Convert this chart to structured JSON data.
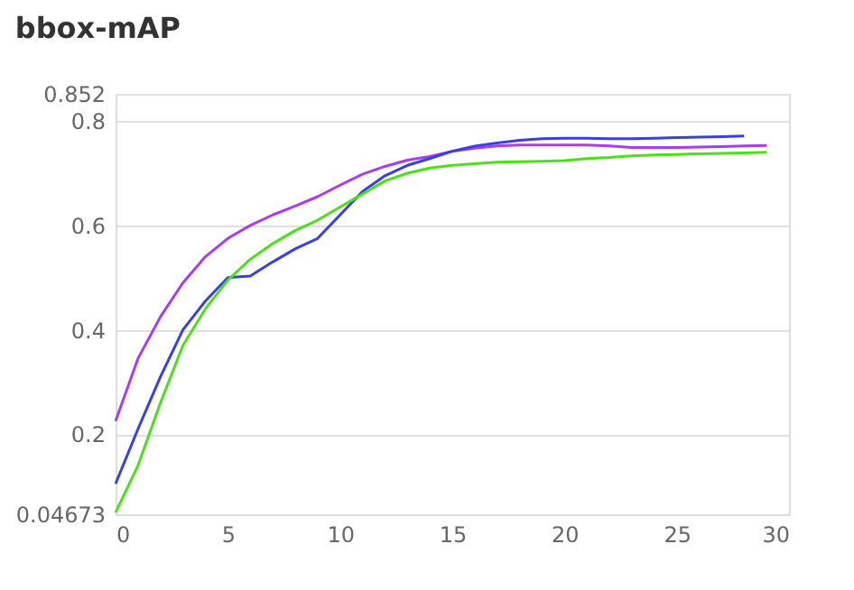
{
  "chart_data": {
    "type": "line",
    "title": "bbox-mAP",
    "xlim": [
      0,
      30
    ],
    "xticks": [
      0,
      5,
      10,
      15,
      20,
      25,
      30
    ],
    "ylim": [
      0.04673,
      0.852
    ],
    "yticks": [
      0.04673,
      0.2,
      0.4,
      0.6,
      0.8,
      0.852
    ],
    "grid": "y",
    "legend": false,
    "marker": "none",
    "line_style": "solid",
    "series": [
      {
        "color": "#a83cf0",
        "x": [
          0,
          1,
          2,
          3,
          4,
          5,
          6,
          7,
          8,
          9,
          10,
          11,
          12,
          13,
          14,
          15,
          16,
          17,
          18,
          19,
          20,
          21,
          22,
          23,
          24,
          25,
          26,
          27,
          28,
          29
        ],
        "values": [
          0.225,
          0.345,
          0.425,
          0.49,
          0.54,
          0.575,
          0.6,
          0.62,
          0.637,
          0.655,
          0.677,
          0.698,
          0.713,
          0.725,
          0.732,
          0.742,
          0.748,
          0.752,
          0.754,
          0.754,
          0.754,
          0.754,
          0.752,
          0.749,
          0.749,
          0.749,
          0.75,
          0.751,
          0.752,
          0.753
        ]
      },
      {
        "color": "#3a3fe0",
        "x": [
          0,
          1,
          2,
          3,
          4,
          5,
          6,
          7,
          8,
          9,
          10,
          11,
          12,
          13,
          14,
          15,
          16,
          17,
          18,
          19,
          20,
          21,
          22,
          23,
          24,
          25,
          26,
          27,
          28
        ],
        "values": [
          0.105,
          0.21,
          0.31,
          0.4,
          0.455,
          0.5,
          0.503,
          0.53,
          0.555,
          0.575,
          0.62,
          0.665,
          0.695,
          0.715,
          0.728,
          0.742,
          0.752,
          0.758,
          0.763,
          0.766,
          0.767,
          0.767,
          0.766,
          0.766,
          0.767,
          0.768,
          0.769,
          0.77,
          0.771
        ]
      },
      {
        "color": "#4ce01a",
        "x": [
          0,
          1,
          2,
          3,
          4,
          5,
          6,
          7,
          8,
          9,
          10,
          11,
          12,
          13,
          14,
          15,
          16,
          17,
          18,
          19,
          20,
          21,
          22,
          23,
          24,
          25,
          26,
          27,
          28,
          29
        ],
        "values": [
          0.05,
          0.14,
          0.26,
          0.37,
          0.44,
          0.495,
          0.535,
          0.565,
          0.59,
          0.61,
          0.635,
          0.66,
          0.685,
          0.7,
          0.71,
          0.715,
          0.718,
          0.721,
          0.722,
          0.723,
          0.724,
          0.728,
          0.73,
          0.733,
          0.735,
          0.736,
          0.737,
          0.738,
          0.739,
          0.74
        ]
      }
    ]
  }
}
